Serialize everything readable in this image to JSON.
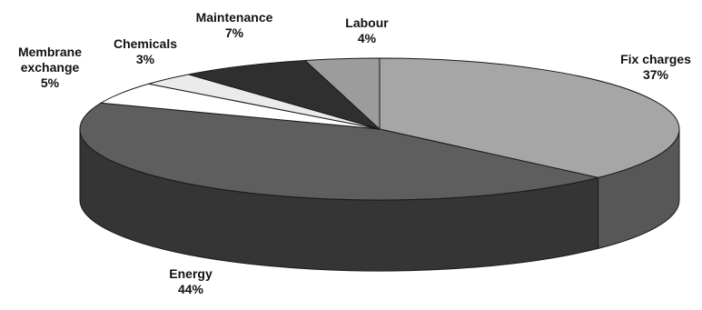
{
  "chart_data": {
    "type": "pie",
    "style": "3d",
    "slices": [
      {
        "label": "Fix charges",
        "value": 37,
        "display": "37%"
      },
      {
        "label": "Energy",
        "value": 44,
        "display": "44%"
      },
      {
        "label": "Membrane exchange",
        "value": 5,
        "display": "5%"
      },
      {
        "label": "Chemicals",
        "value": 3,
        "display": "3%"
      },
      {
        "label": "Maintenance",
        "value": 7,
        "display": "7%"
      },
      {
        "label": "Labour",
        "value": 4,
        "display": "4%"
      }
    ],
    "label_lines": {
      "Fix charges": [
        "Fix charges",
        "37%"
      ],
      "Energy": [
        "Energy",
        "44%"
      ],
      "Membrane exchange": [
        "Membrane",
        "exchange",
        "5%"
      ],
      "Chemicals": [
        "Chemicals",
        "3%"
      ],
      "Maintenance": [
        "Maintenance",
        "7%"
      ],
      "Labour": [
        "Labour",
        "4%"
      ]
    },
    "colors": {
      "Fix charges": "#a6a6a6",
      "Energy": "#5e5e5e",
      "Membrane exchange": "#ffffff",
      "Chemicals": "#ebebeb",
      "Maintenance": "#2f2f2f",
      "Labour": "#9c9c9c"
    },
    "side_colors": {
      "Fix charges": "#575757",
      "Energy": "#353535"
    }
  }
}
